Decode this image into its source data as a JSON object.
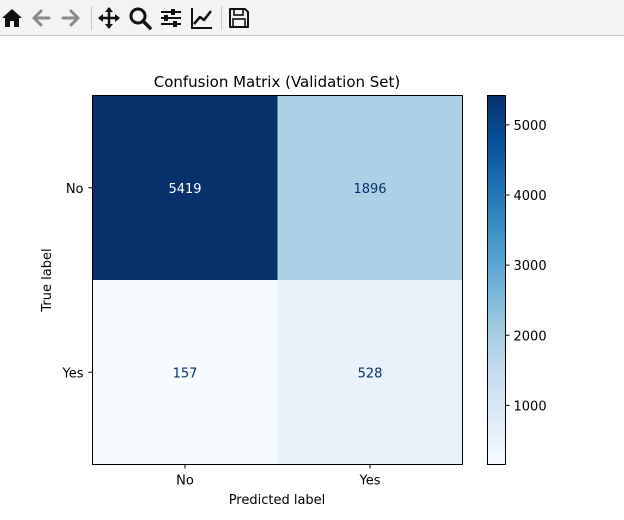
{
  "toolbar": {
    "buttons": [
      {
        "name": "home-button",
        "icon": "home-icon"
      },
      {
        "name": "back-button",
        "icon": "arrow-left-icon"
      },
      {
        "name": "forward-button",
        "icon": "arrow-right-icon"
      },
      {
        "name": "pan-button",
        "icon": "move-icon"
      },
      {
        "name": "zoom-button",
        "icon": "magnifier-icon"
      },
      {
        "name": "configure-subplots-button",
        "icon": "sliders-icon"
      },
      {
        "name": "edit-axis-button",
        "icon": "line-chart-icon"
      },
      {
        "name": "save-button",
        "icon": "floppy-disk-icon"
      }
    ]
  },
  "chart_data": {
    "type": "heatmap",
    "title": "Confusion Matrix (Validation Set)",
    "xlabel": "Predicted label",
    "ylabel": "True label",
    "x_categories": [
      "No",
      "Yes"
    ],
    "y_categories": [
      "No",
      "Yes"
    ],
    "values": [
      [
        5419,
        1896
      ],
      [
        157,
        528
      ]
    ],
    "colormap": "Blues",
    "colorbar": {
      "ticks": [
        "1000",
        "2000",
        "3000",
        "4000",
        "5000"
      ],
      "tick_values": [
        1000,
        2000,
        3000,
        4000,
        5000
      ],
      "range": [
        157,
        5419
      ]
    },
    "grid": false
  }
}
